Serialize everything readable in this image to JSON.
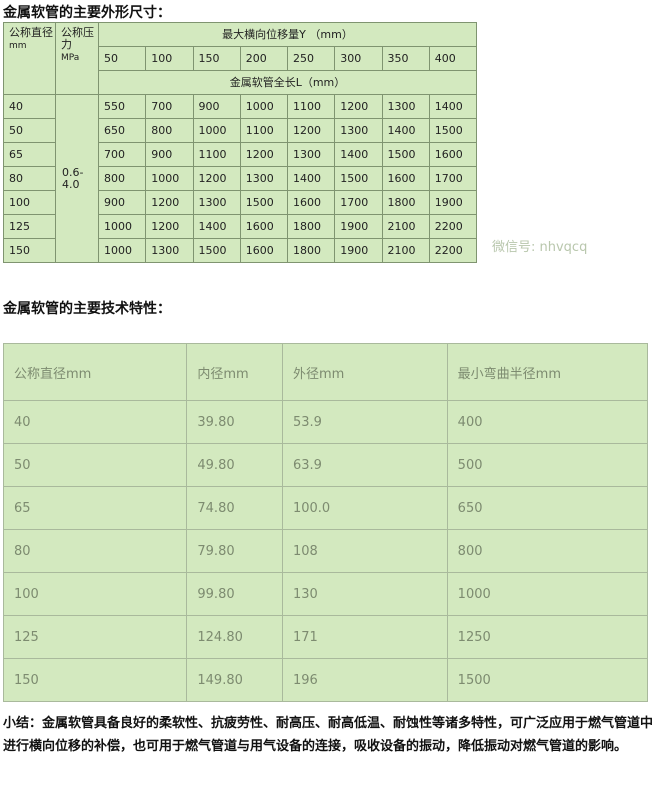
{
  "table1": {
    "title": "金属软管的主要外形尺寸：",
    "h_dn": "公称直径",
    "h_dn_unit": "mm",
    "h_pn": "公称压力",
    "h_pn_unit": "MPa",
    "h_y": "最大横向位移量Y （mm）",
    "y_values": [
      "50",
      "100",
      "150",
      "200",
      "250",
      "300",
      "350",
      "400"
    ],
    "h_l": "金属软管全长L（mm）",
    "pressure": "0.6-4.0",
    "rows": [
      [
        "40",
        "550",
        "700",
        "900",
        "1000",
        "1100",
        "1200",
        "1300",
        "1400"
      ],
      [
        "50",
        "650",
        "800",
        "1000",
        "1100",
        "1200",
        "1300",
        "1400",
        "1500"
      ],
      [
        "65",
        "700",
        "900",
        "1100",
        "1200",
        "1300",
        "1400",
        "1500",
        "1600"
      ],
      [
        "80",
        "800",
        "1000",
        "1200",
        "1300",
        "1400",
        "1500",
        "1600",
        "1700"
      ],
      [
        "100",
        "900",
        "1200",
        "1300",
        "1500",
        "1600",
        "1700",
        "1800",
        "1900"
      ],
      [
        "125",
        "1000",
        "1200",
        "1400",
        "1600",
        "1800",
        "1900",
        "2100",
        "2200"
      ],
      [
        "150",
        "1000",
        "1300",
        "1500",
        "1600",
        "1800",
        "1900",
        "2100",
        "2200"
      ]
    ]
  },
  "watermark": "微信号: nhvqcq",
  "table2": {
    "title": "金属软管的主要技术特性：",
    "headers": [
      "公称直径mm",
      "内径mm",
      "外径mm",
      "最小弯曲半径mm"
    ],
    "rows": [
      [
        "40",
        "39.80",
        "53.9",
        "400"
      ],
      [
        "50",
        "49.80",
        "63.9",
        "500"
      ],
      [
        "65",
        "74.80",
        "100.0",
        "650"
      ],
      [
        "80",
        "79.80",
        "108",
        "800"
      ],
      [
        "100",
        "99.80",
        "130",
        "1000"
      ],
      [
        "125",
        "124.80",
        "171",
        "1250"
      ],
      [
        "150",
        "149.80",
        "196",
        "1500"
      ]
    ]
  },
  "summary": "小结：金属软管具备良好的柔软性、抗疲劳性、耐高压、耐高低温、耐蚀性等诸多特性，可广泛应用于燃气管道中进行横向位移的补偿，也可用于燃气管道与用气设备的连接，吸收设备的振动，降低振动对燃气管道的影响。"
}
